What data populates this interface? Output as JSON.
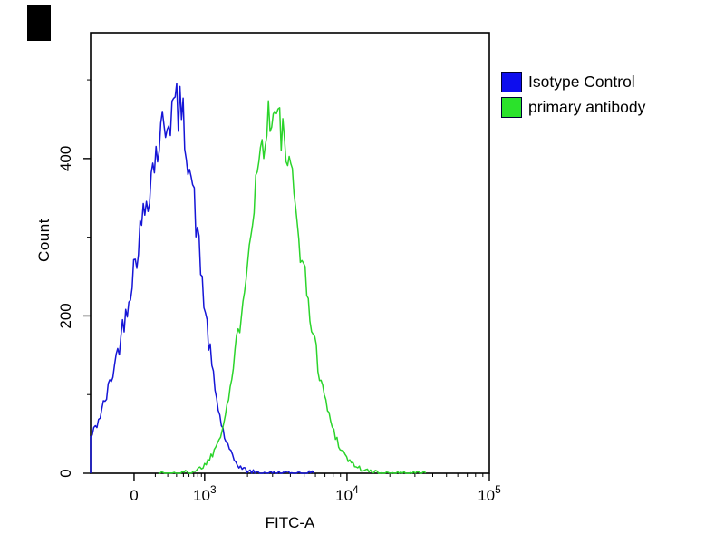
{
  "chart_data": {
    "type": "line",
    "title": "",
    "xlabel": "FITC-A",
    "ylabel": "Count",
    "x_axis": {
      "scale": "biexponential-log",
      "ticks": [
        {
          "label": "0",
          "frac": 0.109
        },
        {
          "base": "10",
          "exp": "3",
          "frac": 0.286
        },
        {
          "base": "10",
          "exp": "4",
          "frac": 0.643
        },
        {
          "base": "10",
          "exp": "5",
          "frac": 1.0
        }
      ],
      "decade_frac_width": 0.357
    },
    "y_axis": {
      "ticks": [
        {
          "label": "0",
          "count": 0
        },
        {
          "label": "200",
          "count": 200
        },
        {
          "label": "400",
          "count": 400
        }
      ],
      "minor_ticks": [
        100,
        300,
        500
      ],
      "max_count": 560
    },
    "series": [
      {
        "name": "Isotype Control",
        "color": "#1515d6",
        "peak_count": 465,
        "peak_x_frac": 0.216,
        "approx_peak_x_value": "6e2",
        "sigma_left_frac": 0.1,
        "sigma_right_frac": 0.056,
        "x_start_frac": 0.0,
        "x_end_frac": 0.56,
        "seed": 42
      },
      {
        "name": "primary antibody",
        "color": "#2bd42b",
        "peak_count": 455,
        "peak_x_frac": 0.455,
        "approx_peak_x_value": "3e3",
        "sigma_left_frac": 0.062,
        "sigma_right_frac": 0.075,
        "x_start_frac": 0.17,
        "x_end_frac": 0.84,
        "seed": 1337
      }
    ],
    "legend": {
      "position": "top-right",
      "items": [
        {
          "label": "Isotype Control",
          "color": "#0d0dee"
        },
        {
          "label": "primary antibody",
          "color": "#2be22b"
        }
      ]
    },
    "frame_color": "#000000",
    "background_color": "#ffffff"
  }
}
